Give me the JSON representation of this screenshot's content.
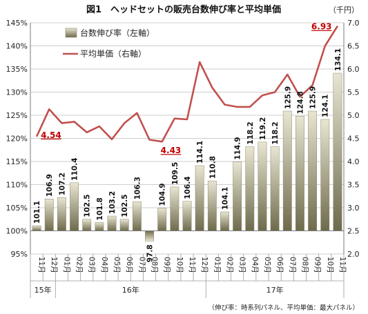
{
  "title": "図1　ヘッドセットの販売台数伸び率と平均単価",
  "right_unit": "（千円）",
  "footnote": "（伸び率：時系列パネル、平均単価：最大パネル）",
  "colors": {
    "bar_light": "#e6e3cf",
    "bar_dark": "#6e6a4c",
    "line": "#c0504d",
    "label_red": "#c00000"
  },
  "chart_data": {
    "type": "bar",
    "title": "図1　ヘッドセットの販売台数伸び率と平均単価",
    "categories": [
      "11月",
      "12月",
      "01月",
      "02月",
      "03月",
      "04月",
      "05月",
      "06月",
      "07月",
      "08月",
      "09月",
      "10月",
      "11月",
      "12月",
      "01月",
      "02月",
      "03月",
      "04月",
      "05月",
      "06月",
      "07月",
      "08月",
      "09月",
      "10月",
      "11月"
    ],
    "years": [
      {
        "label": "15年",
        "start": 0,
        "end": 1
      },
      {
        "label": "16年",
        "start": 2,
        "end": 13
      },
      {
        "label": "17年",
        "start": 14,
        "end": 24
      }
    ],
    "series": [
      {
        "name": "台数伸び率（左軸）",
        "axis": "left",
        "kind": "bar",
        "values": [
          101.1,
          106.9,
          107.2,
          110.4,
          102.5,
          101.8,
          103.2,
          102.5,
          106.3,
          97.8,
          104.9,
          109.5,
          106.4,
          114.1,
          110.8,
          104.1,
          114.9,
          118.2,
          119.2,
          118.2,
          125.9,
          124.8,
          125.9,
          124.1,
          134.1
        ],
        "labels": [
          "101.1",
          "106.9",
          "107.2",
          "110.4",
          "102.5",
          "101.8",
          "103.2",
          "102.5",
          "106.3",
          "97.8",
          "104.9",
          "109.5",
          "106.4",
          "114.1",
          "110.8",
          "104.1",
          "114.9",
          "118.2",
          "119.2",
          "118.2",
          "125.9",
          "124.8",
          "125.9",
          "124.1",
          "134.1"
        ]
      },
      {
        "name": "平均単価（右軸）",
        "axis": "right",
        "kind": "line",
        "values": [
          4.54,
          5.13,
          4.83,
          4.86,
          4.63,
          4.76,
          4.48,
          4.83,
          5.05,
          4.47,
          4.43,
          4.93,
          4.91,
          6.15,
          5.6,
          5.23,
          5.18,
          5.18,
          5.43,
          5.5,
          5.88,
          5.4,
          5.65,
          6.5,
          6.93
        ]
      }
    ],
    "line_annotations": [
      {
        "index": 0,
        "label": "4.54"
      },
      {
        "index": 10,
        "label": "4.43"
      },
      {
        "index": 24,
        "label": "6.93"
      }
    ],
    "ylim_left": [
      95,
      145
    ],
    "yticks_left": [
      "95%",
      "100%",
      "105%",
      "110%",
      "115%",
      "120%",
      "125%",
      "130%",
      "135%",
      "140%",
      "145%"
    ],
    "ylim_right": [
      2.0,
      7.0
    ],
    "yticks_right": [
      "2.0",
      "2.5",
      "3.0",
      "3.5",
      "4.0",
      "4.5",
      "5.0",
      "5.5",
      "6.0",
      "6.5",
      "7.0"
    ],
    "baseline_left": 100,
    "grid": true,
    "legend": "top-left"
  }
}
